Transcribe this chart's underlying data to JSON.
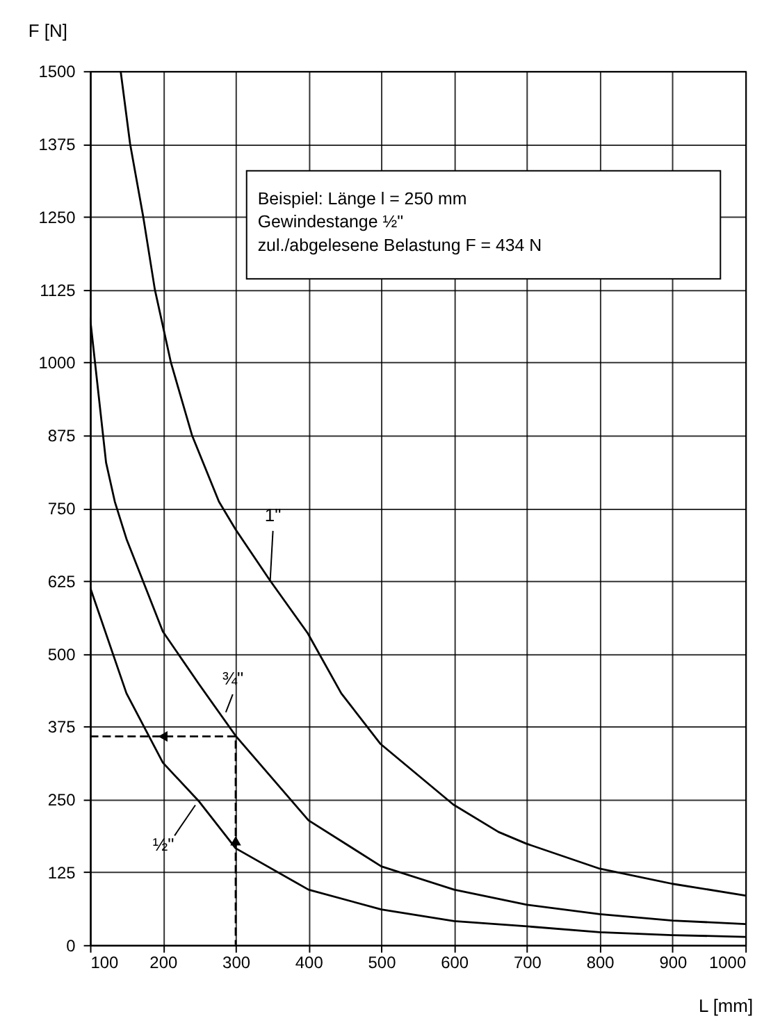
{
  "chart_data": {
    "type": "line",
    "xlabel": "L [mm]",
    "ylabel": "F [N]",
    "xlim": [
      100,
      1000
    ],
    "xticks": [
      100,
      200,
      300,
      400,
      500,
      600,
      700,
      800,
      900,
      1000
    ],
    "ylim": [
      0,
      1500
    ],
    "yticks": [
      0,
      125,
      250,
      375,
      500,
      625,
      750,
      875,
      1000,
      1125,
      1250,
      1375,
      1500
    ],
    "grid": true,
    "line_style": "solid",
    "marker": "none",
    "series": [
      {
        "name": "½\"",
        "color": "#000000",
        "x": [
          100,
          150,
          200,
          250,
          300,
          400,
          500,
          600,
          700,
          800,
          900,
          1000
        ],
        "values": [
          614,
          432,
          313,
          246,
          166,
          95,
          61,
          41,
          32,
          22,
          17,
          14
        ]
      },
      {
        "name": "¾\"",
        "color": "#000000",
        "x": [
          100,
          122,
          134,
          150,
          200,
          250,
          300,
          400,
          500,
          600,
          700,
          800,
          900,
          1000
        ],
        "values": [
          1077,
          828,
          761,
          697,
          538,
          447,
          359,
          214,
          135,
          95,
          69,
          53,
          42,
          36
        ]
      },
      {
        "name": "1\"",
        "color": "#000000",
        "x": [
          142,
          155,
          173,
          189,
          211,
          240,
          277,
          300,
          347,
          399,
          445,
          499,
          599,
          661,
          699,
          800,
          900,
          1000
        ],
        "values": [
          1500,
          1375,
          1250,
          1125,
          1000,
          875,
          761,
          713,
          626,
          535,
          432,
          345,
          241,
          194,
          174,
          131,
          105,
          85
        ]
      },
      {
        "color": "#000000",
        "line_style": "dashed",
        "x": [
          100,
          300,
          300
        ],
        "values": [
          358,
          358,
          0
        ]
      }
    ],
    "annotations": [
      "Beispiel: Länge l = 250 mm\n               Gewindestange ½\"\n               zul./abgelesene Belastung F = 434 N"
    ]
  }
}
